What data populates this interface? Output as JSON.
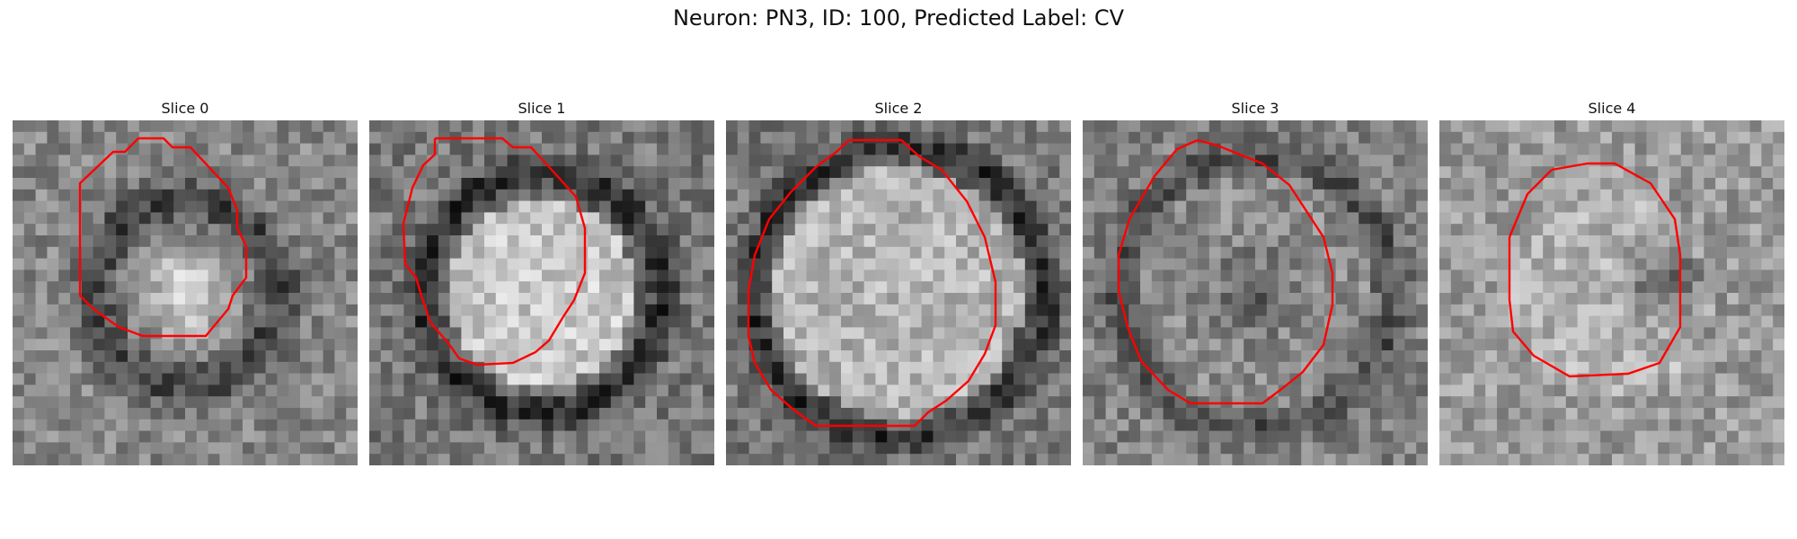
{
  "figure": {
    "title": "Neuron: PN3, ID: 100, Predicted Label: CV"
  },
  "panels": [
    {
      "title": "Slice 0",
      "seed": 11,
      "profile": "bright-core"
    },
    {
      "title": "Slice 1",
      "seed": 23,
      "profile": "bright-disc"
    },
    {
      "title": "Slice 2",
      "seed": 37,
      "profile": "bright-disc-large"
    },
    {
      "title": "Slice 3",
      "seed": 53,
      "profile": "mottled"
    },
    {
      "title": "Slice 4",
      "seed": 71,
      "profile": "dark-core"
    }
  ],
  "colors": {
    "contour": "#ff0000"
  }
}
